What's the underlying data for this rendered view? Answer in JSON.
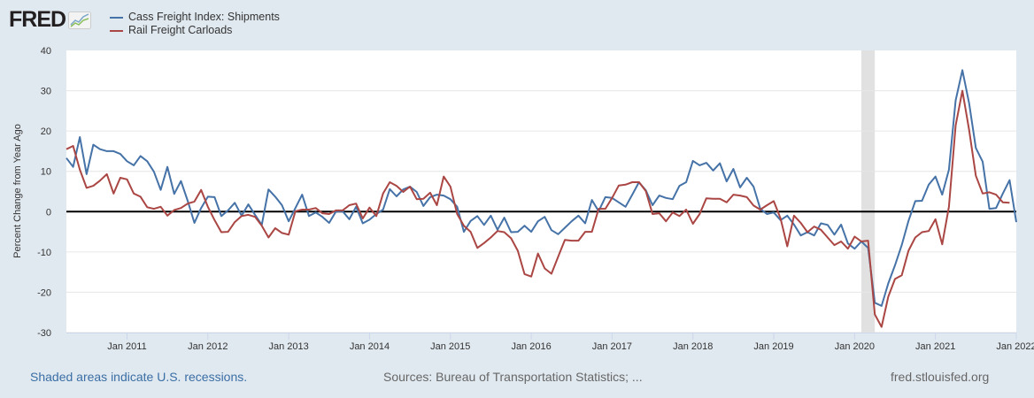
{
  "logo": {
    "text": "FRED"
  },
  "footer": {
    "recession_note": "Shaded areas indicate U.S. recessions.",
    "sources": "Sources: Bureau of Transportation Statistics; ...",
    "site": "fred.stlouisfed.org"
  },
  "chart_data": {
    "type": "line",
    "ylabel": "Percent Change from Year Ago",
    "ylim": [
      -30,
      40
    ],
    "yticks": [
      -30,
      -20,
      -10,
      0,
      10,
      20,
      30,
      40
    ],
    "xticks": [
      "2011-01",
      "2012-01",
      "2013-01",
      "2014-01",
      "2015-01",
      "2016-01",
      "2017-01",
      "2018-01",
      "2019-01",
      "2020-01",
      "2021-01",
      "2022-01"
    ],
    "xtick_labels": [
      "Jan 2011",
      "Jan 2012",
      "Jan 2013",
      "Jan 2014",
      "Jan 2015",
      "Jan 2016",
      "Jan 2017",
      "Jan 2018",
      "Jan 2019",
      "Jan 2020",
      "Jan 2021",
      "Jan 2022"
    ],
    "xlim": [
      "2010-04",
      "2022-01"
    ],
    "grid": true,
    "legend": "top-left",
    "recessions": [
      [
        "2020-02",
        "2020-04"
      ]
    ],
    "x": [
      "2010-04",
      "2010-05",
      "2010-06",
      "2010-07",
      "2010-08",
      "2010-09",
      "2010-10",
      "2010-11",
      "2010-12",
      "2011-01",
      "2011-02",
      "2011-03",
      "2011-04",
      "2011-05",
      "2011-06",
      "2011-07",
      "2011-08",
      "2011-09",
      "2011-10",
      "2011-11",
      "2011-12",
      "2012-01",
      "2012-02",
      "2012-03",
      "2012-04",
      "2012-05",
      "2012-06",
      "2012-07",
      "2012-08",
      "2012-09",
      "2012-10",
      "2012-11",
      "2012-12",
      "2013-01",
      "2013-02",
      "2013-03",
      "2013-04",
      "2013-05",
      "2013-06",
      "2013-07",
      "2013-08",
      "2013-09",
      "2013-10",
      "2013-11",
      "2013-12",
      "2014-01",
      "2014-02",
      "2014-03",
      "2014-04",
      "2014-05",
      "2014-06",
      "2014-07",
      "2014-08",
      "2014-09",
      "2014-10",
      "2014-11",
      "2014-12",
      "2015-01",
      "2015-02",
      "2015-03",
      "2015-04",
      "2015-05",
      "2015-06",
      "2015-07",
      "2015-08",
      "2015-09",
      "2015-10",
      "2015-11",
      "2015-12",
      "2016-01",
      "2016-02",
      "2016-03",
      "2016-04",
      "2016-05",
      "2016-06",
      "2016-07",
      "2016-08",
      "2016-09",
      "2016-10",
      "2016-11",
      "2016-12",
      "2017-01",
      "2017-02",
      "2017-03",
      "2017-04",
      "2017-05",
      "2017-06",
      "2017-07",
      "2017-08",
      "2017-09",
      "2017-10",
      "2017-11",
      "2017-12",
      "2018-01",
      "2018-02",
      "2018-03",
      "2018-04",
      "2018-05",
      "2018-06",
      "2018-07",
      "2018-08",
      "2018-09",
      "2018-10",
      "2018-11",
      "2018-12",
      "2019-01",
      "2019-02",
      "2019-03",
      "2019-04",
      "2019-05",
      "2019-06",
      "2019-07",
      "2019-08",
      "2019-09",
      "2019-10",
      "2019-11",
      "2019-12",
      "2020-01",
      "2020-02",
      "2020-03",
      "2020-04",
      "2020-05",
      "2020-06",
      "2020-07",
      "2020-08",
      "2020-09",
      "2020-10",
      "2020-11",
      "2020-12",
      "2021-01",
      "2021-02",
      "2021-03",
      "2021-04",
      "2021-05",
      "2021-06",
      "2021-07",
      "2021-08",
      "2021-09",
      "2021-10",
      "2021-11",
      "2021-12",
      "2022-01"
    ],
    "series": [
      {
        "name": "Cass Freight Index: Shipments",
        "color": "#4572a7",
        "values": [
          13.3,
          11.1,
          18.5,
          9.3,
          16.6,
          15.5,
          15,
          15,
          14.3,
          12.5,
          11.5,
          13.8,
          12.5,
          9.9,
          5.4,
          11.1,
          4.4,
          7.6,
          2.7,
          -2.8,
          0.9,
          3.7,
          3.6,
          -1.1,
          0.3,
          2.2,
          -1,
          1.8,
          -0.8,
          -3.3,
          5.5,
          3.7,
          1.6,
          -2.4,
          0.9,
          4.2,
          -1.1,
          -0.2,
          -1.3,
          -2.8,
          0,
          0.1,
          -1.9,
          1.2,
          -2.9,
          -2,
          -0.6,
          0.5,
          5.6,
          3.8,
          5.5,
          6.2,
          4.9,
          1.4,
          3.6,
          4.2,
          4,
          3.1,
          1.2,
          -5,
          -2.3,
          -1.1,
          -3.3,
          -1,
          -4.5,
          -1.5,
          -5.1,
          -5,
          -3.5,
          -5,
          -2.4,
          -1.3,
          -4.6,
          -5.6,
          -4,
          -2.4,
          -1,
          -2.9,
          2.9,
          0.1,
          3.6,
          3.4,
          2.3,
          1.2,
          4.2,
          7.3,
          5.3,
          1.6,
          4,
          3.4,
          3.1,
          6.4,
          7.3,
          12.6,
          11.5,
          12.1,
          10.2,
          12,
          7.5,
          10.6,
          6,
          8.4,
          6.2,
          0.7,
          -0.6,
          -0.2,
          -2.1,
          -1,
          -3.2,
          -5.9,
          -5.1,
          -5.9,
          -2.9,
          -3.3,
          -5.7,
          -3.2,
          -7.9,
          -9.2,
          -7.4,
          -9,
          -22.6,
          -23.4,
          -17.8,
          -13.3,
          -8.3,
          -2.3,
          2.6,
          2.7,
          6.7,
          8.7,
          4.2,
          10.4,
          27.6,
          35.1,
          26.9,
          15.8,
          12.4,
          0.7,
          0.9,
          4.5,
          7.8,
          -2.6
        ]
      },
      {
        "name": "Rail Freight Carloads",
        "color": "#aa4643",
        "values": [
          15.5,
          16.3,
          10.4,
          5.9,
          6.4,
          7.7,
          9.3,
          4.5,
          8.4,
          8,
          4.5,
          3.7,
          1.1,
          0.7,
          1.2,
          -1,
          0.4,
          0.9,
          2,
          2.5,
          5.4,
          1.2,
          -2.1,
          -5.1,
          -5,
          -2.6,
          -1.1,
          -0.8,
          -1.3,
          -3.5,
          -6.4,
          -4.1,
          -5.3,
          -5.7,
          0.1,
          0.5,
          0.5,
          0.9,
          -0.4,
          -0.6,
          0.3,
          0.3,
          1.6,
          2,
          -1.7,
          1,
          -1.1,
          4.5,
          7.3,
          6.4,
          4.9,
          6.2,
          3.1,
          3.2,
          4.7,
          1.6,
          8.7,
          6.2,
          -0.6,
          -3.5,
          -5,
          -9,
          -7.8,
          -6.4,
          -4.8,
          -5.1,
          -6.6,
          -9.7,
          -15.5,
          -16.1,
          -10.4,
          -14.1,
          -15.4,
          -11.2,
          -7,
          -7.2,
          -7.2,
          -5,
          -5,
          0.7,
          0.7,
          3.4,
          6.5,
          6.7,
          7.3,
          7.3,
          5.1,
          -0.6,
          -0.4,
          -2.4,
          -0.2,
          -1.1,
          0.5,
          -3,
          -0.6,
          3.3,
          3.2,
          3.2,
          2.3,
          4.2,
          4,
          3.6,
          1.5,
          0.5,
          1.6,
          2.6,
          -1.7,
          -8.6,
          -1,
          -2.8,
          -5.1,
          -3.7,
          -4.5,
          -6.4,
          -8.3,
          -7.4,
          -9.2,
          -6.2,
          -7.4,
          -7.2,
          -25.5,
          -28.6,
          -21.1,
          -16.7,
          -15.8,
          -9.7,
          -6.4,
          -5.1,
          -4.8,
          -1.9,
          -8.1,
          1.2,
          21.4,
          30,
          20.3,
          8.9,
          4.5,
          4.8,
          4.2,
          2.3,
          2.2,
          null
        ]
      }
    ]
  }
}
